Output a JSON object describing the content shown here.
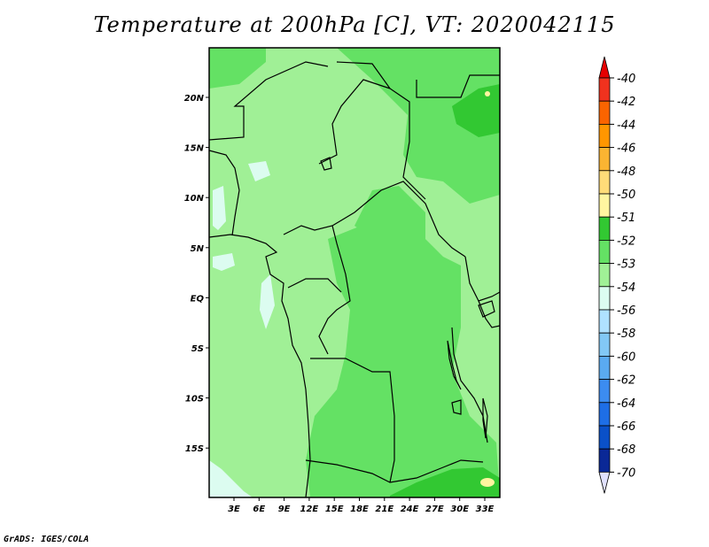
{
  "title": "Temperature at 200hPa [C], VT: 2020042115",
  "credit": "GrADS: IGES/COLA",
  "map": {
    "lat_labels": [
      "20N",
      "15N",
      "10N",
      "5N",
      "EQ",
      "5S",
      "10S",
      "15S"
    ],
    "lon_labels": [
      "3E",
      "6E",
      "9E",
      "12E",
      "15E",
      "18E",
      "21E",
      "24E",
      "27E",
      "30E",
      "33E"
    ]
  },
  "colorbar": {
    "levels": [
      "-40",
      "-42",
      "-44",
      "-46",
      "-48",
      "-50",
      "-51",
      "-52",
      "-53",
      "-54",
      "-56",
      "-58",
      "-60",
      "-62",
      "-64",
      "-66",
      "-68",
      "-70"
    ],
    "colors": [
      "#f0321e",
      "#fa6400",
      "#ff9600",
      "#fab432",
      "#ffdc78",
      "#fff5a0",
      "#32c832",
      "#64e164",
      "#a0f096",
      "#dcfcf0",
      "#afe1ff",
      "#82c8f5",
      "#5aaaf0",
      "#3c8cf0",
      "#1e6ee6",
      "#0a50c8",
      "#0a2896",
      "#0a0a5a"
    ],
    "top_color": "#e60000",
    "bottom_color": "#e1e1ff"
  }
}
